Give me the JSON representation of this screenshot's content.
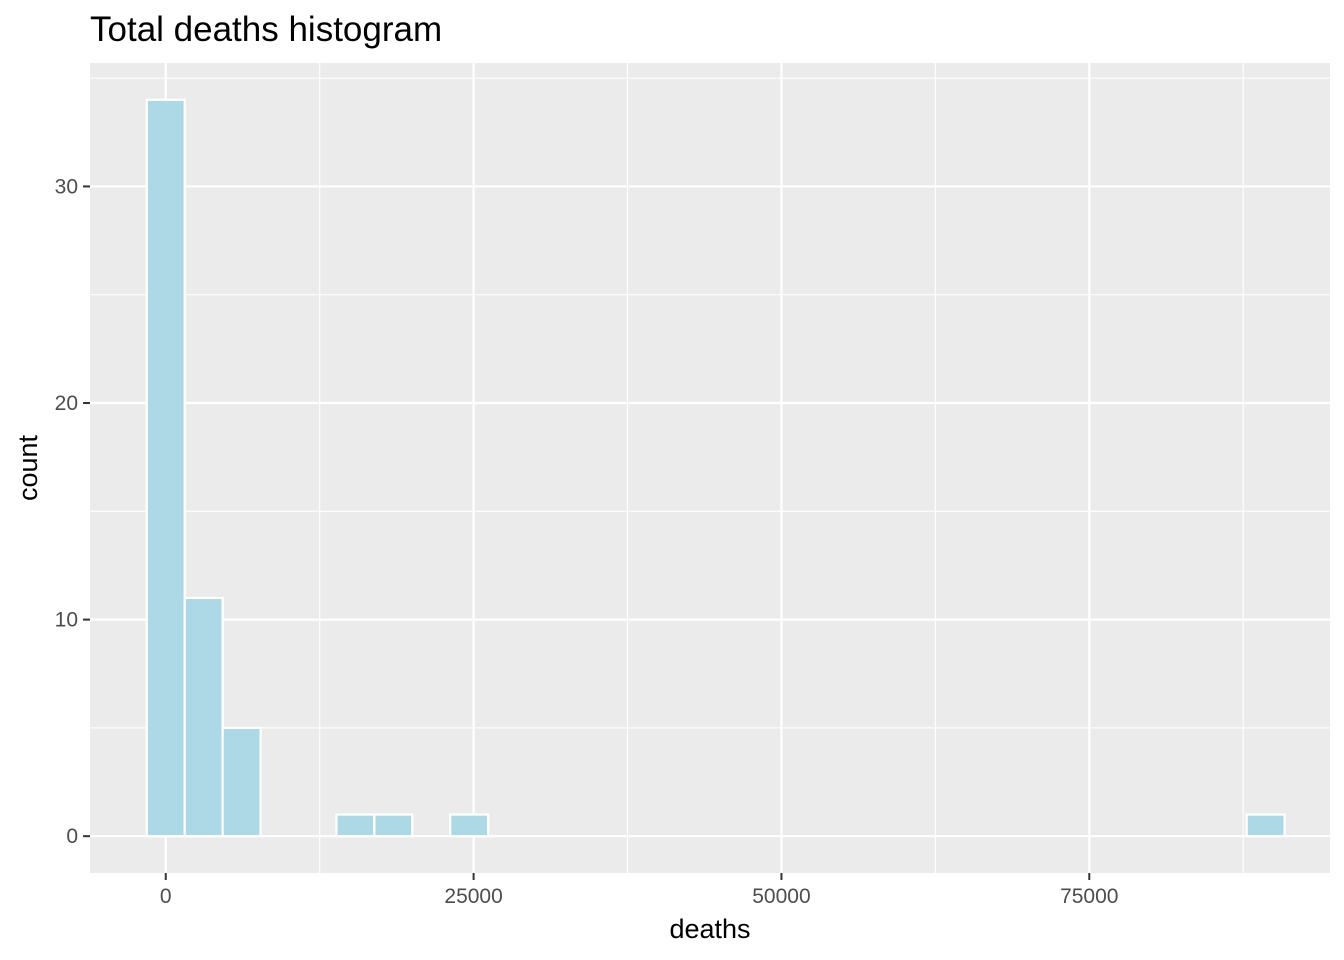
{
  "chart_data": {
    "type": "bar",
    "subtype": "histogram",
    "title": "Total deaths histogram",
    "xlabel": "deaths",
    "ylabel": "count",
    "xlim": [
      -6152,
      94548
    ],
    "ylim": [
      -1.7,
      35.7
    ],
    "x_ticks": [
      0,
      25000,
      50000,
      75000
    ],
    "x_tick_labels": [
      "0",
      "25000",
      "50000",
      "75000"
    ],
    "y_ticks": [
      0,
      10,
      20,
      30
    ],
    "y_tick_labels": [
      "0",
      "10",
      "20",
      "30"
    ],
    "bin_width": 3080,
    "bins": [
      {
        "x0": -1540,
        "x1": 1540,
        "count": 34
      },
      {
        "x0": 1540,
        "x1": 4620,
        "count": 11
      },
      {
        "x0": 4620,
        "x1": 7700,
        "count": 5
      },
      {
        "x0": 7700,
        "x1": 10780,
        "count": 0
      },
      {
        "x0": 10780,
        "x1": 13860,
        "count": 0
      },
      {
        "x0": 13860,
        "x1": 16940,
        "count": 1
      },
      {
        "x0": 16940,
        "x1": 20020,
        "count": 1
      },
      {
        "x0": 20020,
        "x1": 23100,
        "count": 0
      },
      {
        "x0": 23100,
        "x1": 26180,
        "count": 1
      },
      {
        "x0": 26180,
        "x1": 29260,
        "count": 0
      },
      {
        "x0": 29260,
        "x1": 32340,
        "count": 0
      },
      {
        "x0": 32340,
        "x1": 35420,
        "count": 0
      },
      {
        "x0": 35420,
        "x1": 38500,
        "count": 0
      },
      {
        "x0": 38500,
        "x1": 41580,
        "count": 0
      },
      {
        "x0": 41580,
        "x1": 44660,
        "count": 0
      },
      {
        "x0": 44660,
        "x1": 47740,
        "count": 0
      },
      {
        "x0": 47740,
        "x1": 50820,
        "count": 0
      },
      {
        "x0": 50820,
        "x1": 53900,
        "count": 0
      },
      {
        "x0": 53900,
        "x1": 56980,
        "count": 0
      },
      {
        "x0": 56980,
        "x1": 60060,
        "count": 0
      },
      {
        "x0": 60060,
        "x1": 63140,
        "count": 0
      },
      {
        "x0": 63140,
        "x1": 66220,
        "count": 0
      },
      {
        "x0": 66220,
        "x1": 69300,
        "count": 0
      },
      {
        "x0": 69300,
        "x1": 72380,
        "count": 0
      },
      {
        "x0": 72380,
        "x1": 75460,
        "count": 0
      },
      {
        "x0": 75460,
        "x1": 78540,
        "count": 0
      },
      {
        "x0": 78540,
        "x1": 81620,
        "count": 0
      },
      {
        "x0": 81620,
        "x1": 84700,
        "count": 0
      },
      {
        "x0": 84700,
        "x1": 87780,
        "count": 0
      },
      {
        "x0": 87780,
        "x1": 90860,
        "count": 1
      }
    ],
    "grid": true,
    "legend": "none",
    "colors": {
      "bar_fill": "#add8e6",
      "bar_outline": "#ffffff",
      "panel_background": "#ebebeb",
      "grid": "#ffffff",
      "tick_label": "#4d4d4d",
      "tick_mark": "#333333"
    }
  }
}
